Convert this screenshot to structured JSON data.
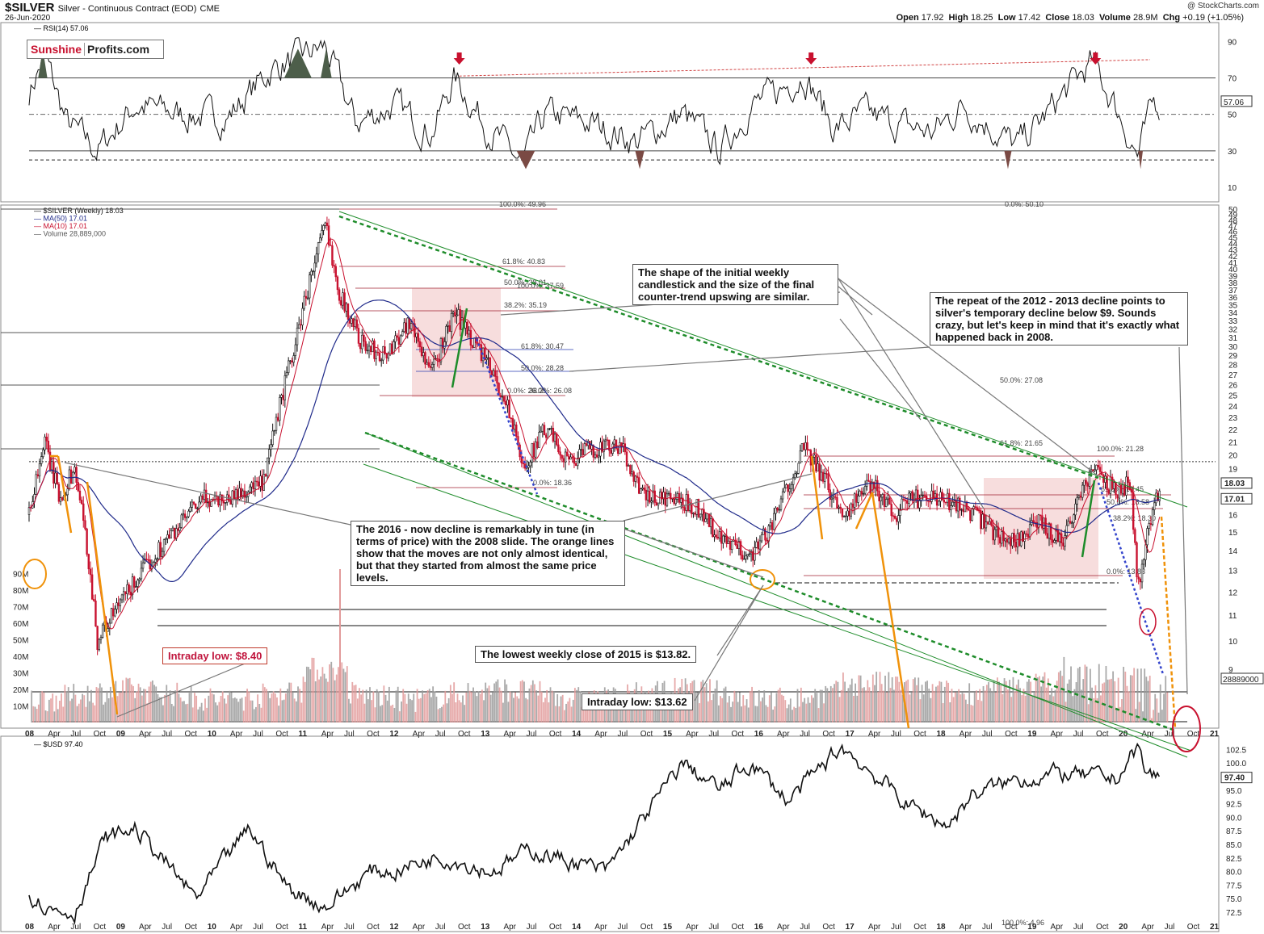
{
  "header": {
    "symbol": "$SILVER",
    "subtitle": "Silver - Continuous Contract (EOD)",
    "exchange": "CME",
    "date": "26-Jun-2020",
    "open_label": "Open",
    "open": "17.92",
    "high_label": "High",
    "high": "18.25",
    "low_label": "Low",
    "low": "17.42",
    "close_label": "Close",
    "close": "18.03",
    "volume_label": "Volume",
    "volume": "28.9M",
    "chg_label": "Chg",
    "chg": "+0.19 (+1.05%)",
    "source": "@ StockCharts.com"
  },
  "logo": {
    "part1": "Sunshine",
    "part2": "Profits.com"
  },
  "annotations": {
    "note_shape": "The shape of the initial weekly candlestick and the size of the final counter-trend upswing are similar.",
    "note_repeat": "The repeat of the 2012 - 2013 decline points to silver's temporary decline below $9. Sounds crazy, but let's keep in mind that it's exactly what happened back in 2008.",
    "note_2016": "The 2016 - now decline is remarkably in tune (in terms of price) with the 2008 slide. The orange lines show that the moves are not only almost identical, but that they started from almost the same price levels.",
    "note_lowest_close": "The lowest weekly close of 2015 is $13.82.",
    "intraday_low_840": "Intraday low: $8.40",
    "intraday_low_1362": "Intraday low: $13.62"
  },
  "colors": {
    "price_up": "#111111",
    "price_down": "#c8102e",
    "ma50": "#1f2a8a",
    "ma10": "#c8102e",
    "green": "#1e8c2a",
    "orange": "#f0920a",
    "blue_dotted": "#3344cc",
    "shade": "#f2c6c6"
  },
  "chart_data": [
    {
      "type": "line",
      "title": "RSI(14) 57.06",
      "legend": [
        "RSI(14) 57.06"
      ],
      "ylim": [
        10,
        95
      ],
      "yticks": [
        10,
        30,
        50,
        70,
        90
      ],
      "reference_lines": [
        70,
        50,
        30
      ],
      "last_value_label": "57.06",
      "x": [
        "2008-01",
        "2008-03",
        "2008-06",
        "2008-10",
        "2009-03",
        "2009-09",
        "2010-03",
        "2010-09",
        "2011-01",
        "2011-04",
        "2011-08",
        "2012-01",
        "2012-06",
        "2012-09",
        "2013-01",
        "2013-06",
        "2013-09",
        "2014-03",
        "2014-09",
        "2015-03",
        "2015-08",
        "2015-12",
        "2016-03",
        "2016-07",
        "2016-11",
        "2017-03",
        "2017-07",
        "2017-12",
        "2018-04",
        "2018-08",
        "2018-11",
        "2019-03",
        "2019-07",
        "2019-09",
        "2019-12",
        "2020-03",
        "2020-05",
        "2020-06"
      ],
      "values": [
        62,
        82,
        45,
        30,
        55,
        50,
        48,
        75,
        82,
        87,
        45,
        55,
        40,
        70,
        45,
        22,
        50,
        45,
        35,
        50,
        30,
        55,
        60,
        73,
        42,
        50,
        45,
        40,
        55,
        42,
        32,
        50,
        70,
        78,
        55,
        27,
        55,
        57
      ]
    },
    {
      "type": "candlestick",
      "title": "$SILVER (Weekly) 18.03",
      "legend": [
        "$SILVER (Weekly) 18.03",
        "MA(50) 17.01",
        "MA(10) 17.01",
        "Volume 28,889,000"
      ],
      "y_scale": "log",
      "ylim": [
        8,
        50
      ],
      "yticks": [
        9,
        10,
        11,
        12,
        13,
        14,
        15,
        16,
        17,
        18,
        19,
        20,
        21,
        22,
        23,
        24,
        25,
        26,
        27,
        28,
        29,
        30,
        31,
        32,
        33,
        34,
        35,
        36,
        37,
        38,
        39,
        40,
        41,
        42,
        43,
        44,
        45,
        46,
        47,
        48,
        49,
        50
      ],
      "xticks": [
        "08",
        "Apr",
        "Jul",
        "Oct",
        "09",
        "Apr",
        "Jul",
        "Oct",
        "10",
        "Apr",
        "Jul",
        "Oct",
        "11",
        "Apr",
        "Jul",
        "Oct",
        "12",
        "Apr",
        "Jul",
        "Oct",
        "13",
        "Apr",
        "Jul",
        "Oct",
        "14",
        "Apr",
        "Jul",
        "Oct",
        "15",
        "Apr",
        "Jul",
        "Oct",
        "16",
        "Apr",
        "Jul",
        "Oct",
        "17",
        "Apr",
        "Jul",
        "Oct",
        "18",
        "Apr",
        "Jul",
        "Oct",
        "19",
        "Apr",
        "Jul",
        "Oct",
        "20",
        "Apr",
        "Jul",
        "Oct",
        "21"
      ],
      "volume_ticks": [
        "10M",
        "20M",
        "30M",
        "40M",
        "50M",
        "60M",
        "70M",
        "80M",
        "90M"
      ],
      "volume_last_label": "28889000",
      "last_labels": [
        "18.03",
        "17.01"
      ],
      "fib_labels": [
        "100.0%: 49.96",
        "0.0%: 50.10",
        "61.8%: 40.83",
        "50.0%: 38.01",
        "100.0%: 37.59",
        "38.2%: 35.19",
        "61.8%: 30.47",
        "50.0%: 28.28",
        "0.0%: 26.08",
        "38.2%: 26.08",
        "50.0%: 27.08",
        "61.8%: 21.65",
        "100.0%: 21.28",
        "0.0%: 18.36",
        "61.8%: 19.45",
        "50.0%: 18.58",
        "38.2%: 18.30",
        "0.0%: 13.83",
        "100.0%: 4.96"
      ],
      "x": [
        "2008-01",
        "2008-03",
        "2008-05",
        "2008-07",
        "2008-10",
        "2009-01",
        "2009-06",
        "2009-12",
        "2010-03",
        "2010-08",
        "2010-12",
        "2011-04",
        "2011-06",
        "2011-09",
        "2011-12",
        "2012-03",
        "2012-06",
        "2012-09",
        "2012-12",
        "2013-04",
        "2013-06",
        "2013-09",
        "2013-12",
        "2014-03",
        "2014-07",
        "2014-10",
        "2015-01",
        "2015-05",
        "2015-08",
        "2015-12",
        "2016-03",
        "2016-07",
        "2016-10",
        "2016-12",
        "2017-04",
        "2017-07",
        "2017-09",
        "2017-12",
        "2018-04",
        "2018-08",
        "2018-11",
        "2019-02",
        "2019-05",
        "2019-09",
        "2019-12",
        "2020-02",
        "2020-03",
        "2020-05",
        "2020-06"
      ],
      "close": [
        16,
        21,
        17,
        19,
        10,
        11.5,
        14,
        17,
        17,
        18,
        30,
        47,
        36,
        30,
        29,
        33,
        27,
        34,
        30,
        24,
        19,
        22,
        19.5,
        20.5,
        20.5,
        17,
        17,
        16.5,
        14.5,
        13.8,
        15.5,
        20.5,
        18,
        16,
        18,
        16,
        17,
        17,
        16.5,
        15,
        14.5,
        15.5,
        14.5,
        19,
        17.5,
        18,
        12,
        16.5,
        18.03
      ]
    },
    {
      "type": "line",
      "title": "$USD 97.40",
      "legend": [
        "$USD 97.40"
      ],
      "ylim": [
        72.5,
        103
      ],
      "yticks": [
        72.5,
        75.0,
        77.5,
        80.0,
        82.5,
        85.0,
        87.5,
        90.0,
        92.5,
        95.0,
        97.5,
        100.0,
        102.5
      ],
      "last_value_label": "97.40",
      "x": [
        "2008-01",
        "2008-04",
        "2008-07",
        "2008-11",
        "2009-03",
        "2009-11",
        "2010-06",
        "2010-11",
        "2011-04",
        "2011-10",
        "2012-01",
        "2012-07",
        "2013-02",
        "2013-07",
        "2014-05",
        "2015-03",
        "2015-08",
        "2015-12",
        "2016-05",
        "2016-12",
        "2017-09",
        "2018-02",
        "2018-05",
        "2018-11",
        "2019-05",
        "2019-12",
        "2020-03",
        "2020-04",
        "2020-06"
      ],
      "values": [
        76,
        73,
        72.5,
        86,
        88,
        75,
        88,
        77,
        73.5,
        80,
        80,
        83,
        80,
        84,
        80,
        100,
        95,
        100,
        93,
        103,
        92,
        88.5,
        94,
        97,
        98,
        97,
        103,
        98,
        97.4
      ]
    }
  ]
}
